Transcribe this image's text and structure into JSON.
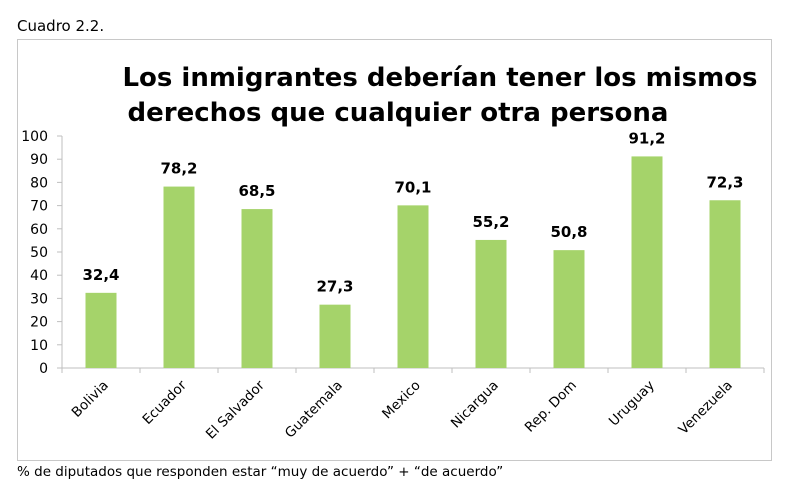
{
  "figure_label": "Cuadro 2.2.",
  "footnote": "% de diputados que responden estar “muy de acuerdo” + “de acuerdo”",
  "chart_data": {
    "type": "bar",
    "title": "Los inmigrantes deberían tener los mismos derechos que cualquier otra persona",
    "title_lines": [
      "Los inmigrantes deberían tener los mismos",
      "derechos que cualquier otra persona"
    ],
    "categories": [
      "Bolivia",
      "Ecuador",
      "El Salvador",
      "Guatemala",
      "Mexico",
      "Nicargua",
      "Rep. Dom",
      "Uruguay",
      "Venezuela"
    ],
    "values": [
      32.4,
      78.2,
      68.5,
      27.3,
      70.1,
      55.2,
      50.8,
      91.2,
      72.3
    ],
    "data_labels": [
      "32,4",
      "78,2",
      "68,5",
      "27,3",
      "70,1",
      "55,2",
      "50,8",
      "91,2",
      "72,3"
    ],
    "xlabel": "",
    "ylabel": "",
    "ylim": [
      0,
      100
    ],
    "yticks": [
      0,
      10,
      20,
      30,
      40,
      50,
      60,
      70,
      80,
      90,
      100
    ],
    "grid": false,
    "legend": "none",
    "bar_color": "#A5D36A"
  }
}
